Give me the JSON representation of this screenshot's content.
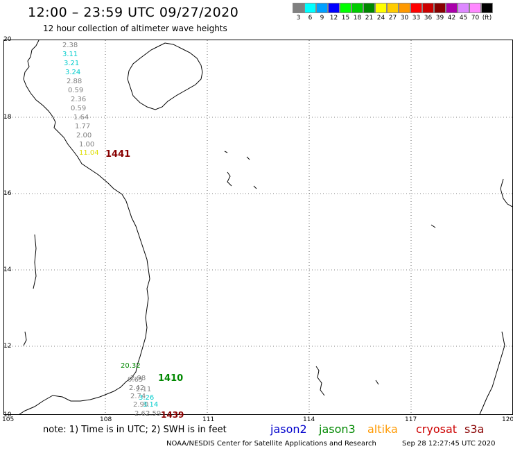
{
  "header": {
    "title": "12:00 – 23:59 UTC 09/27/2020",
    "subtitle": "12 hour collection of altimeter wave heights"
  },
  "scale": {
    "colors": [
      "#808080",
      "#00ffff",
      "#00a0ff",
      "#0000ff",
      "#00ff00",
      "#00cc00",
      "#008800",
      "#ffff00",
      "#ffcc00",
      "#ff9900",
      "#ff0000",
      "#cc0000",
      "#880000",
      "#aa00aa",
      "#dd88ff",
      "#ff88ff",
      "#000000"
    ],
    "labels": [
      "3",
      "6",
      "9",
      "12",
      "15",
      "18",
      "21",
      "24",
      "27",
      "30",
      "33",
      "36",
      "39",
      "42",
      "45",
      "70",
      "(ft)"
    ]
  },
  "axes": {
    "lat_labels": [
      "20",
      "18",
      "16",
      "14",
      "12",
      "10"
    ],
    "lon_labels": [
      "105",
      "108",
      "111",
      "114",
      "117",
      "120"
    ]
  },
  "observations": [
    {
      "text": "2.38",
      "color": "#808080"
    },
    {
      "text": "3.11",
      "color": "#00cccc"
    },
    {
      "text": "3.21",
      "color": "#00cccc"
    },
    {
      "text": "3.24",
      "color": "#00cccc"
    },
    {
      "text": "2.88",
      "color": "#808080"
    },
    {
      "text": "0.59",
      "color": "#808080"
    },
    {
      "text": "2.36",
      "color": "#808080"
    },
    {
      "text": "0.59",
      "color": "#808080"
    },
    {
      "text": "1.64",
      "color": "#808080"
    },
    {
      "text": "1.77",
      "color": "#808080"
    },
    {
      "text": "2.00",
      "color": "#808080"
    },
    {
      "text": "1.00",
      "color": "#808080"
    },
    {
      "text": "11.04",
      "color": "#dddd00"
    },
    {
      "text": "1441",
      "color": "#880000"
    },
    {
      "text": "20.32",
      "color": "#008800"
    },
    {
      "text": "1410",
      "color": "#008800"
    },
    {
      "text": "2.98",
      "color": "#808080"
    },
    {
      "text": "0.65",
      "color": "#808080"
    },
    {
      "text": "2.42",
      "color": "#808080"
    },
    {
      "text": "2.11",
      "color": "#808080"
    },
    {
      "text": "2.74",
      "color": "#808080"
    },
    {
      "text": "3.26",
      "color": "#00cccc"
    },
    {
      "text": "2.90",
      "color": "#808080"
    },
    {
      "text": "3.14",
      "color": "#00cccc"
    },
    {
      "text": "2.62",
      "color": "#808080"
    },
    {
      "text": "2.59",
      "color": "#808080"
    },
    {
      "text": "1439",
      "color": "#880000"
    }
  ],
  "footer": {
    "note": "note:  1) Time is in UTC;  2) SWH is in feet",
    "satellites": [
      {
        "name": "jason2",
        "color": "#0000cc"
      },
      {
        "name": "jason3",
        "color": "#008800"
      },
      {
        "name": "altika",
        "color": "#ff9900"
      },
      {
        "name": "cryosat",
        "color": "#cc0000"
      },
      {
        "name": "s3a",
        "color": "#880000"
      }
    ],
    "credit": "NOAA/NESDIS Center for Satellite Applications and Research",
    "timestamp": "Sep 28 12:27:45 UTC 2020"
  }
}
